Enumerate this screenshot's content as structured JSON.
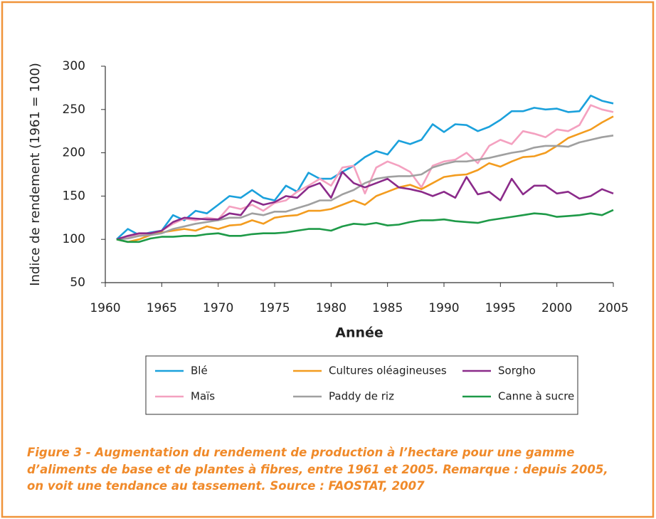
{
  "chart_data": {
    "type": "line",
    "y_label": "Indice de rendement  (1961 = 100)",
    "x_label": "Année",
    "caption": "Figure 3 - Augmentation du rendement de production à l’hectare pour une gamme d’aliments de base et de plantes à fibres, entre 1961 et 2005. Remarque : depuis 2005, on voit une tendance au tassement. Source : FAOSTAT, 2007",
    "x": [
      1961,
      1962,
      1963,
      1964,
      1965,
      1966,
      1967,
      1968,
      1969,
      1970,
      1971,
      1972,
      1973,
      1974,
      1975,
      1976,
      1977,
      1978,
      1979,
      1980,
      1981,
      1982,
      1983,
      1984,
      1985,
      1986,
      1987,
      1988,
      1989,
      1990,
      1991,
      1992,
      1993,
      1994,
      1995,
      1996,
      1997,
      1998,
      1999,
      2000,
      2001,
      2002,
      2003,
      2004,
      2005
    ],
    "xlim": [
      1960,
      2005
    ],
    "xticks": [
      1960,
      1965,
      1970,
      1975,
      1980,
      1985,
      1990,
      1995,
      2000,
      2005
    ],
    "ylim": [
      50,
      300
    ],
    "yticks": [
      50,
      100,
      150,
      200,
      250,
      300
    ],
    "legend": "bottom",
    "series": [
      {
        "name": "Blé",
        "color": "#1ba1dc",
        "values": [
          100,
          112,
          105,
          108,
          110,
          128,
          122,
          133,
          130,
          140,
          150,
          148,
          157,
          148,
          145,
          162,
          155,
          177,
          170,
          170,
          178,
          185,
          195,
          202,
          198,
          214,
          210,
          215,
          233,
          224,
          233,
          232,
          225,
          230,
          238,
          248,
          248,
          252,
          250,
          251,
          247,
          248,
          266,
          260,
          257
        ]
      },
      {
        "name": "Maïs",
        "color": "#f4a1c0",
        "values": [
          100,
          103,
          106,
          106,
          110,
          118,
          124,
          122,
          125,
          123,
          138,
          135,
          140,
          133,
          142,
          145,
          155,
          162,
          170,
          162,
          183,
          185,
          153,
          183,
          190,
          185,
          178,
          160,
          185,
          190,
          192,
          200,
          188,
          208,
          215,
          210,
          225,
          222,
          218,
          227,
          225,
          232,
          255,
          250,
          247
        ]
      },
      {
        "name": "Cultures oléagineuses",
        "color": "#f39c1f",
        "values": [
          100,
          97,
          100,
          105,
          108,
          110,
          112,
          110,
          115,
          112,
          116,
          117,
          122,
          118,
          125,
          127,
          128,
          133,
          133,
          135,
          140,
          145,
          140,
          150,
          155,
          160,
          163,
          158,
          165,
          172,
          174,
          175,
          180,
          188,
          184,
          190,
          195,
          196,
          200,
          208,
          217,
          222,
          227,
          235,
          242
        ]
      },
      {
        "name": "Paddy de riz",
        "color": "#a0a0a0",
        "values": [
          100,
          101,
          104,
          105,
          107,
          112,
          115,
          118,
          120,
          122,
          125,
          125,
          130,
          128,
          132,
          132,
          136,
          140,
          145,
          145,
          152,
          157,
          165,
          170,
          172,
          173,
          173,
          175,
          183,
          187,
          190,
          190,
          192,
          194,
          197,
          200,
          202,
          206,
          208,
          208,
          207,
          212,
          215,
          218,
          220
        ]
      },
      {
        "name": "Sorgho",
        "color": "#8b2b8a",
        "values": [
          100,
          104,
          107,
          107,
          110,
          120,
          125,
          124,
          123,
          123,
          130,
          128,
          145,
          140,
          143,
          150,
          148,
          160,
          165,
          148,
          178,
          165,
          160,
          165,
          170,
          160,
          158,
          155,
          150,
          155,
          148,
          172,
          152,
          155,
          145,
          170,
          152,
          162,
          162,
          153,
          155,
          147,
          150,
          158,
          153
        ]
      },
      {
        "name": "Canne à sucre",
        "color": "#1e9a48",
        "values": [
          100,
          97,
          97,
          101,
          103,
          103,
          104,
          104,
          106,
          107,
          104,
          104,
          106,
          107,
          107,
          108,
          110,
          112,
          112,
          110,
          115,
          118,
          117,
          119,
          116,
          117,
          120,
          122,
          122,
          123,
          121,
          120,
          119,
          122,
          124,
          126,
          128,
          130,
          129,
          126,
          127,
          128,
          130,
          128,
          134
        ]
      }
    ]
  }
}
